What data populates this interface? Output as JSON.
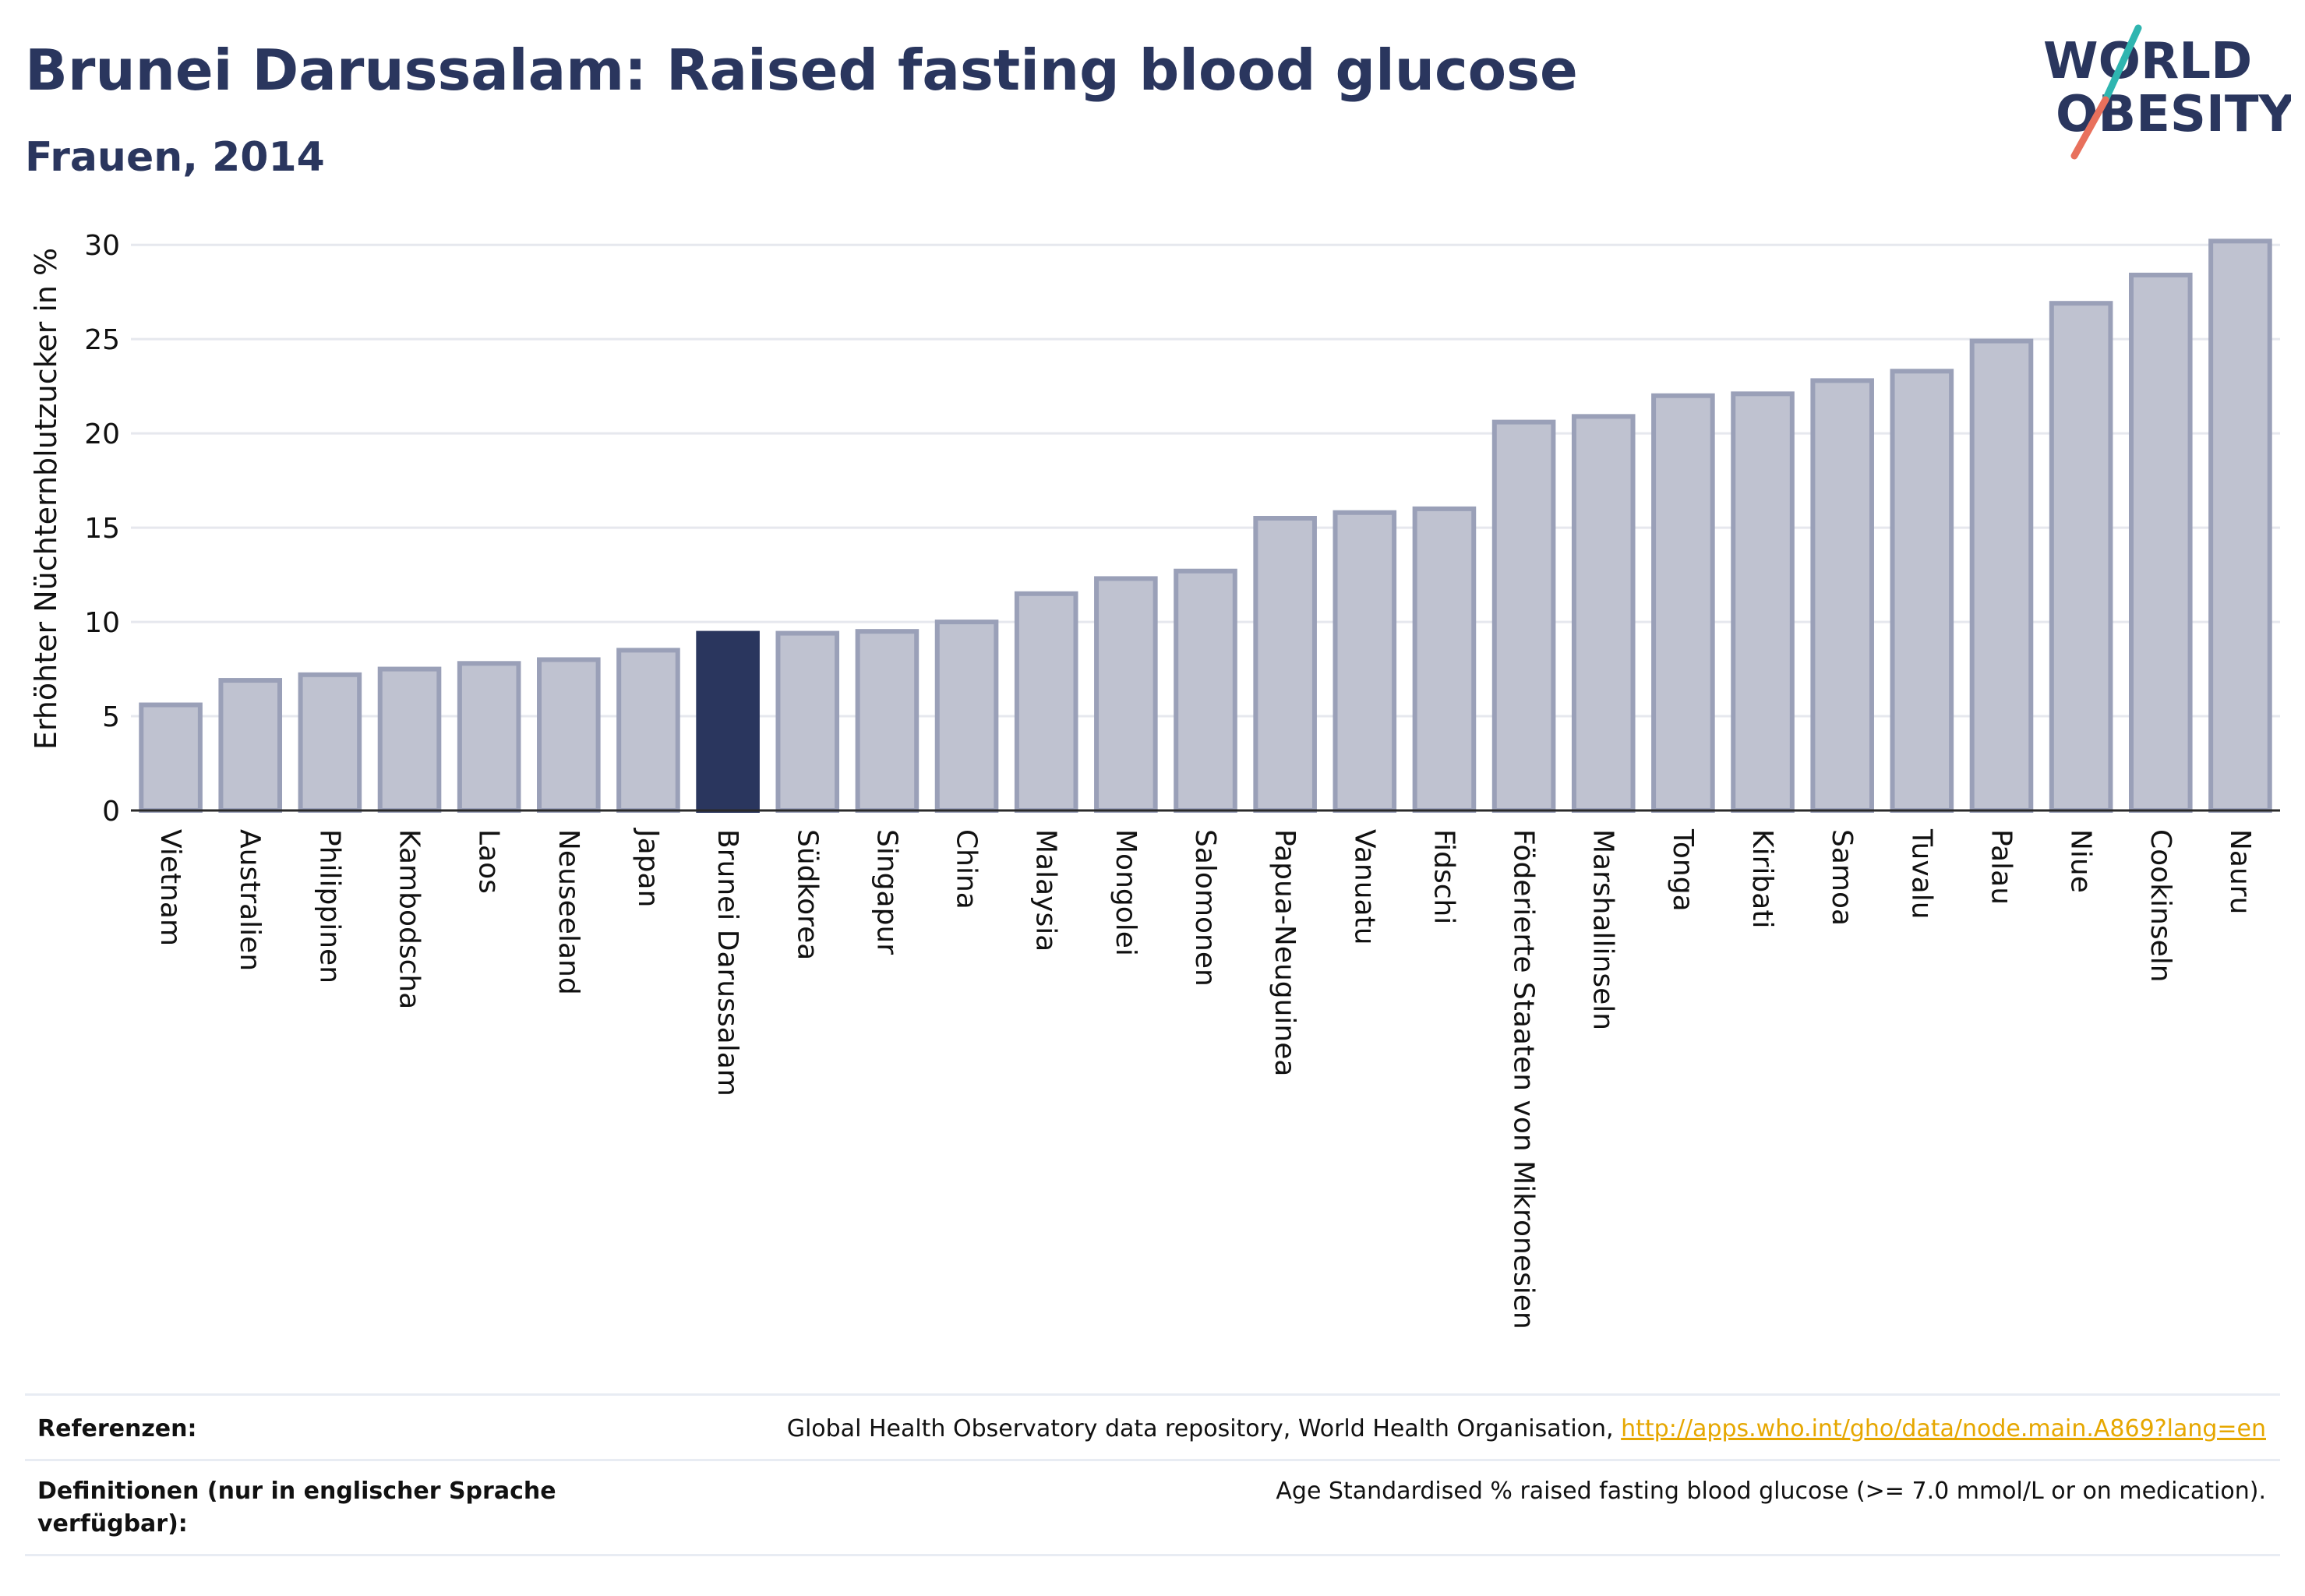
{
  "title": "Brunei Darussalam: Raised fasting blood glucose",
  "subtitle": "Frauen, 2014",
  "logo": {
    "line1": "WORLD",
    "line2": "OBESITY",
    "icon": "world-obesity-logo"
  },
  "colors": {
    "text": "#2a365e",
    "bar": "#bfc2d0",
    "bar_border": "#9aa0b8",
    "highlight": "#2a365e",
    "grid": "#e6e8ee",
    "axis": "#2a2a2a",
    "link": "#e6a700"
  },
  "chart_data": {
    "type": "bar",
    "ylabel": "Erhöhter Nüchternblutzucker in %",
    "ylim": [
      0,
      31
    ],
    "yticks": [
      0,
      5,
      10,
      15,
      20,
      25,
      30
    ],
    "grid": true,
    "highlight": "Brunei Darussalam",
    "categories": [
      "Vietnam",
      "Australien",
      "Philippinen",
      "Kambodscha",
      "Laos",
      "Neuseeland",
      "Japan",
      "Brunei Darussalam",
      "Südkorea",
      "Singapur",
      "China",
      "Malaysia",
      "Mongolei",
      "Salomonen",
      "Papua-Neuguinea",
      "Vanuatu",
      "Fidschi",
      "Föderierte Staaten von Mikronesien",
      "Marshallinseln",
      "Tonga",
      "Kiribati",
      "Samoa",
      "Tuvalu",
      "Palau",
      "Niue",
      "Cookinseln",
      "Nauru"
    ],
    "values": [
      5.6,
      6.9,
      7.2,
      7.5,
      7.8,
      8.0,
      8.5,
      9.4,
      9.4,
      9.5,
      10.0,
      11.5,
      12.3,
      12.7,
      15.5,
      15.8,
      16.0,
      20.6,
      20.9,
      22.0,
      22.1,
      22.8,
      23.3,
      24.9,
      26.9,
      28.4,
      30.2
    ]
  },
  "footer": {
    "references_label": "Referenzen:",
    "references_text": "Global Health Observatory data repository, World Health Organisation,",
    "references_link": "http://apps.who.int/gho/data/node.main.A869?lang=en",
    "definitions_label": "Definitionen (nur in englischer Sprache verfügbar):",
    "definitions_text": "Age Standardised % raised fasting blood glucose (>= 7.0 mmol/L or on medication)."
  }
}
